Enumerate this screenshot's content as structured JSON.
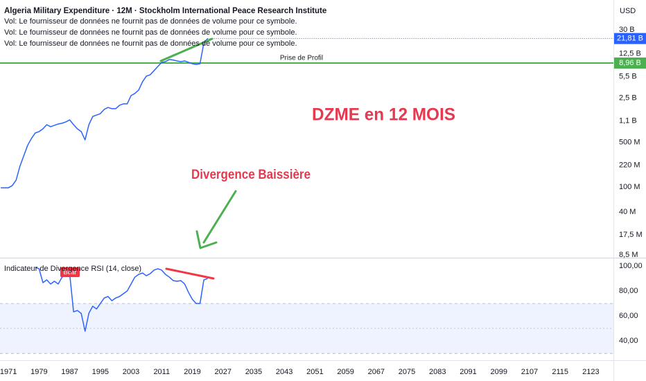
{
  "chart_data": [
    {
      "type": "line",
      "title": "Algeria Military Expenditure · 12M · Stockholm International Peace Research Institute",
      "notes": [
        "Vol: Le fournisseur de données ne fournit pas de données de volume pour ce symbole.",
        "Vol: Le fournisseur de données ne fournit pas de données de volume pour ce symbole.",
        "Vol: Le fournisseur de données ne fournit pas de données de volume pour ce symbole."
      ],
      "currency": "USD",
      "annotations": [
        "DZME en 12 MOIS",
        "Divergence Baissière"
      ],
      "yscale": "log",
      "color": "#2962ff",
      "xlim": [
        1968.8,
        2128.9
      ],
      "ylim": [
        8070000,
        88300000000
      ],
      "yticks": [
        {
          "value": 8500000,
          "label": "8,5 M"
        },
        {
          "value": 17500000,
          "label": "17,5 M"
        },
        {
          "value": 40000000,
          "label": "40 M"
        },
        {
          "value": 100000000,
          "label": "100 M"
        },
        {
          "value": 220000000,
          "label": "220 M"
        },
        {
          "value": 500000000,
          "label": "500 M"
        },
        {
          "value": 1100000000,
          "label": "1,1 B"
        },
        {
          "value": 2500000000,
          "label": "2,5 B"
        },
        {
          "value": 5500000000,
          "label": "5,5 B"
        },
        {
          "value": 12500000000,
          "label": "12,5 B"
        },
        {
          "value": 30000000000,
          "label": "30 B"
        }
      ],
      "x": [
        1969,
        1970,
        1971,
        1972,
        1973,
        1974,
        1975,
        1976,
        1977,
        1978,
        1979,
        1980,
        1981,
        1982,
        1983,
        1984,
        1985,
        1986,
        1987,
        1988,
        1989,
        1990,
        1991,
        1992,
        1993,
        1994,
        1995,
        1996,
        1997,
        1998,
        1999,
        2000,
        2001,
        2002,
        2003,
        2004,
        2005,
        2006,
        2007,
        2008,
        2009,
        2010,
        2011,
        2012,
        2013,
        2014,
        2015,
        2016,
        2017,
        2018,
        2019,
        2020,
        2021,
        2022,
        2023
      ],
      "values": [
        97000000,
        97000000,
        97000000,
        105000000,
        128000000,
        212000000,
        309000000,
        451000000,
        580000000,
        708000000,
        745000000,
        824000000,
        957000000,
        889000000,
        934000000,
        982000000,
        1010000000,
        1060000000,
        1140000000,
        957000000,
        824000000,
        745000000,
        551000000,
        957000000,
        1290000000,
        1360000000,
        1430000000,
        1670000000,
        1790000000,
        1710000000,
        1710000000,
        1940000000,
        2040000000,
        2040000000,
        2750000000,
        2970000000,
        3370000000,
        4550000000,
        5570000000,
        5850000000,
        6810000000,
        7910000000,
        9200000000,
        9440000000,
        10200000000,
        10000000000,
        9680000000,
        9440000000,
        9680000000,
        9200000000,
        8750000000,
        8530000000,
        8750000000,
        18600000000,
        21810000000
      ],
      "last_value": {
        "value": 21810000000,
        "label": "21,81 B"
      },
      "horizontal_line": {
        "name": "Prise de Profil",
        "value": 8960000000,
        "label": "8,96 B",
        "color": "#4caf50"
      }
    },
    {
      "type": "line",
      "title": "Indicateur de Divergence RSI (14, close)",
      "annotations": [
        "Bear"
      ],
      "color": "#2962ff",
      "xlim": [
        1968.8,
        2128.9
      ],
      "xticks": [
        1971,
        1979,
        1987,
        1995,
        2003,
        2011,
        2019,
        2027,
        2035,
        2043,
        2051,
        2059,
        2067,
        2075,
        2083,
        2091,
        2099,
        2107,
        2115,
        2123
      ],
      "ylim": [
        29,
        105
      ],
      "yticks": [
        {
          "value": 100,
          "label": "100,00"
        },
        {
          "value": 80,
          "label": "80,00"
        },
        {
          "value": 60,
          "label": "60,00"
        },
        {
          "value": 40,
          "label": "40,00"
        }
      ],
      "band": [
        30,
        70
      ],
      "midline": 50,
      "x": [
        1978,
        1979,
        1980,
        1981,
        1982,
        1983,
        1984,
        1985,
        1986,
        1987,
        1988,
        1989,
        1990,
        1991,
        1992,
        1993,
        1994,
        1995,
        1996,
        1997,
        1998,
        1999,
        2000,
        2001,
        2002,
        2003,
        2004,
        2005,
        2006,
        2007,
        2008,
        2009,
        2010,
        2011,
        2012,
        2013,
        2014,
        2015,
        2016,
        2017,
        2018,
        2019,
        2020,
        2021,
        2022,
        2023
      ],
      "values": [
        98.9,
        97.8,
        86.7,
        88.9,
        85.6,
        87.8,
        85.6,
        91.1,
        92.2,
        93.3,
        63.3,
        64.4,
        62.0,
        47.8,
        62.2,
        67.8,
        65.6,
        70.0,
        74.4,
        75.6,
        72.2,
        74.4,
        75.6,
        77.8,
        80.0,
        85.6,
        91.1,
        93.3,
        94.4,
        92.2,
        93.9,
        96.7,
        97.8,
        96.7,
        93.3,
        91.1,
        88.3,
        87.8,
        88.3,
        85.6,
        78.9,
        73.3,
        70.0,
        70.0,
        88.9,
        90.0
      ]
    }
  ]
}
